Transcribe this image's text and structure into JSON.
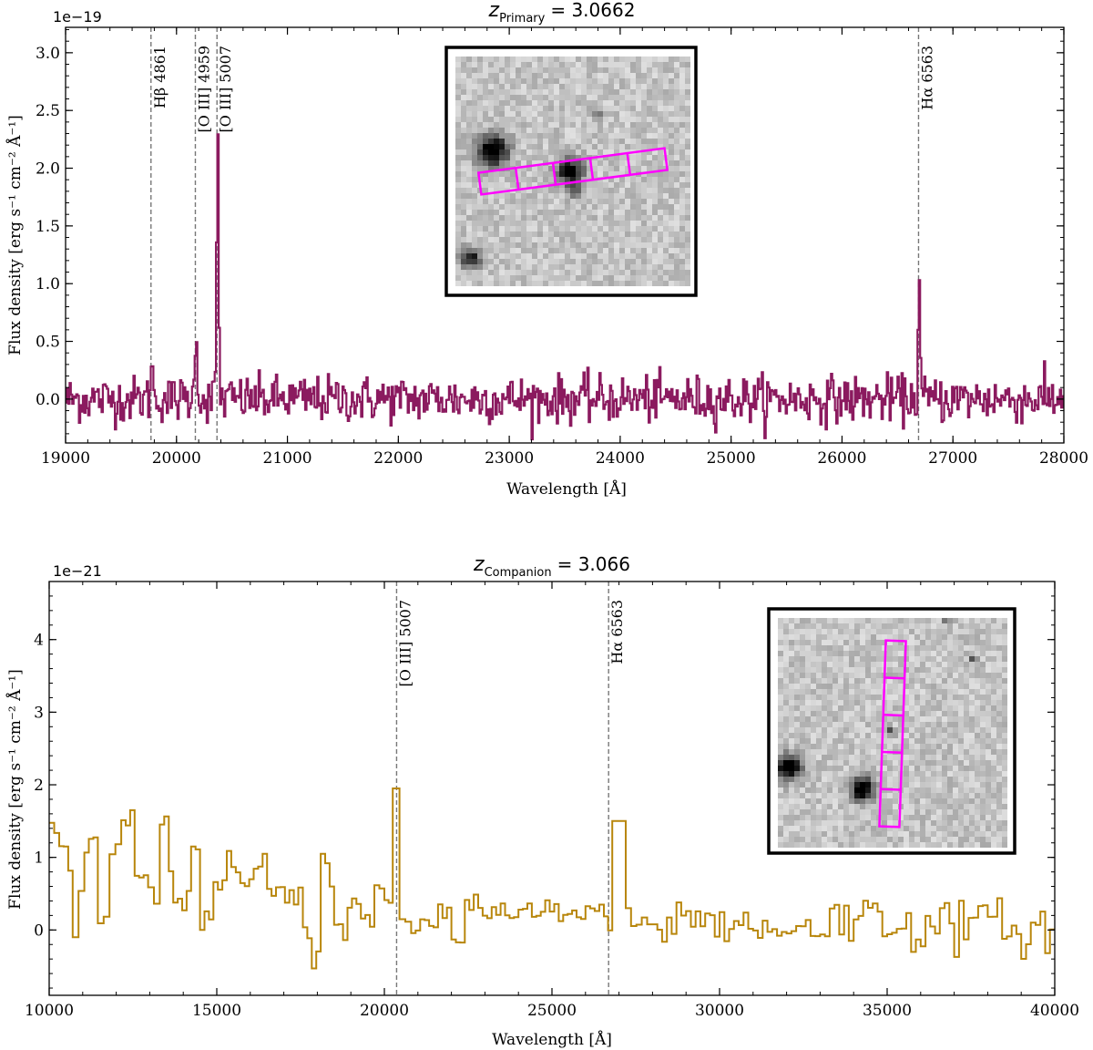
{
  "chart_data": [
    {
      "type": "line",
      "title_symbol": "z",
      "title_subscript": "Primary",
      "title_value": "= 3.0662",
      "xlabel": "Wavelength [Å]",
      "ylabel": "Flux density [erg s⁻¹ cm⁻² Å⁻¹]",
      "y_offset_label": "1e−19",
      "xlim": [
        19000,
        28000
      ],
      "ylim": [
        -0.38,
        3.22
      ],
      "xticks": [
        19000,
        20000,
        21000,
        22000,
        23000,
        24000,
        25000,
        26000,
        27000,
        28000
      ],
      "yticks": [
        0.0,
        0.5,
        1.0,
        1.5,
        2.0,
        2.5,
        3.0
      ],
      "ytick_labels": [
        "0.0",
        "0.5",
        "1.0",
        "1.5",
        "2.0",
        "2.5",
        "3.0"
      ],
      "line_color": "#8b1a5f",
      "emission_lines": [
        {
          "label": "Hβ 4861",
          "x": 19770
        },
        {
          "label": "[O III] 4959",
          "x": 20170
        },
        {
          "label": "[O III] 5007",
          "x": 20365
        },
        {
          "label": "Hα 6563",
          "x": 26690
        }
      ],
      "peaks": [
        {
          "x": 19770,
          "y": 0.38
        },
        {
          "x": 20170,
          "y": 0.72
        },
        {
          "x": 20365,
          "y": 2.35
        },
        {
          "x": 26690,
          "y": 1.0
        }
      ],
      "noise_level": 0.1,
      "bin_width": 12,
      "inset": {
        "has_slit": true,
        "slit_color": "#ff00ff"
      }
    },
    {
      "type": "line",
      "title_symbol": "z",
      "title_subscript": "Companion",
      "title_value": "= 3.066",
      "xlabel": "Wavelength [Å]",
      "ylabel": "Flux density [erg s⁻¹ cm⁻² Å⁻¹]",
      "y_offset_label": "1e−21",
      "xlim": [
        10000,
        40000
      ],
      "ylim": [
        -0.9,
        4.8
      ],
      "xticks": [
        10000,
        15000,
        20000,
        25000,
        30000,
        35000,
        40000
      ],
      "yticks": [
        0,
        1,
        2,
        3,
        4
      ],
      "ytick_labels": [
        "0",
        "1",
        "2",
        "3",
        "4"
      ],
      "line_color": "#b8860b",
      "emission_lines": [
        {
          "label": "[O III] 5007",
          "x": 20365
        },
        {
          "label": "Hα 6563",
          "x": 26690
        }
      ],
      "step_x": [
        10000,
        10150,
        10300,
        10700,
        11050,
        11450,
        11800,
        12150,
        12550,
        12950,
        13300,
        13700,
        14100,
        14500,
        14900,
        15300,
        15700,
        16100,
        16500,
        16900,
        17300,
        17700,
        18100,
        18500,
        18900,
        19300,
        19700,
        20000,
        20250,
        20450,
        20800,
        21200,
        21600,
        22000,
        22400,
        22800,
        23200,
        23600,
        24000,
        24400,
        24800,
        25200,
        25600,
        26000,
        26550,
        26800,
        27200,
        28000,
        29000,
        30000,
        31000,
        32000,
        33000,
        34000,
        35000,
        36000,
        37000,
        38000,
        39000
      ],
      "step_y": [
        1.6,
        1.5,
        0.9,
        0.3,
        1.1,
        0.2,
        1.0,
        1.5,
        0.8,
        0.4,
        1.2,
        0.3,
        0.9,
        0.2,
        0.6,
        0.9,
        0.6,
        1.0,
        0.5,
        0.4,
        0.2,
        -0.3,
        0.8,
        -0.1,
        0.4,
        0.3,
        0.6,
        0.4,
        1.95,
        0.1,
        0.05,
        0.1,
        0.3,
        -0.2,
        0.4,
        0.2,
        0.25,
        0.2,
        0.3,
        0.2,
        0.3,
        0.2,
        0.2,
        0.3,
        0.05,
        1.5,
        0.0,
        0.1,
        0.2,
        0.05,
        0.0,
        0.1,
        0.1,
        0.2,
        0.1,
        0.0,
        0.1,
        0.05,
        0.0
      ],
      "inset": {
        "has_slit": true,
        "slit_color": "#ff00ff"
      }
    }
  ]
}
